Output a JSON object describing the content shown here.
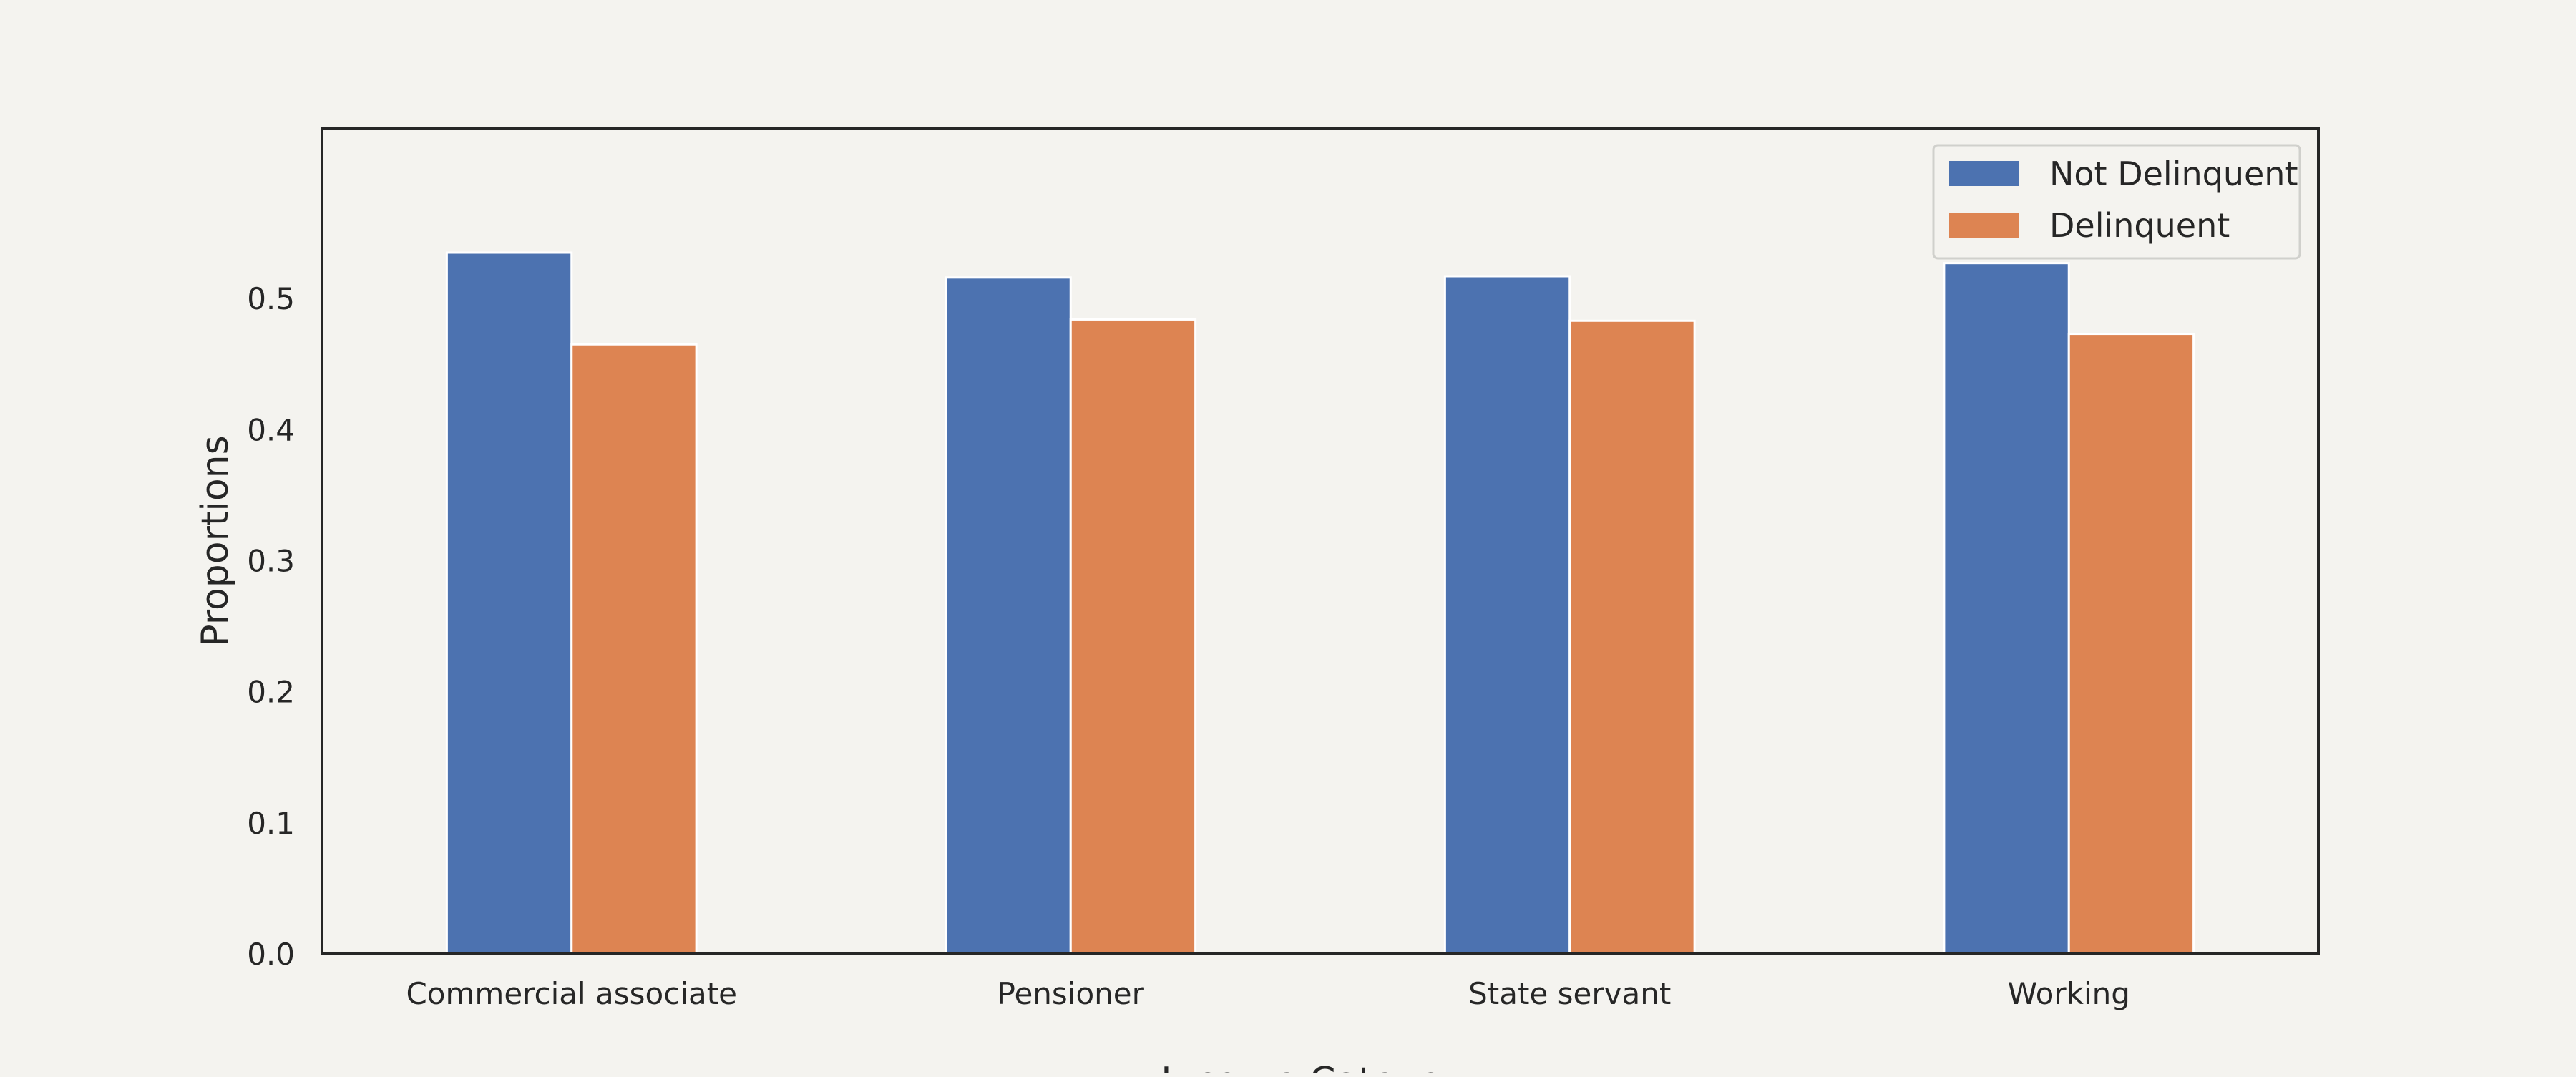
{
  "chart_data": {
    "type": "bar",
    "title": "",
    "xlabel": "Income Category",
    "ylabel": "Proportions",
    "categories": [
      "Commercial associate",
      "Pensioner",
      "State servant",
      "Working"
    ],
    "series": [
      {
        "name": "Not Delinquent",
        "color": "#4c72b0",
        "values": [
          0.535,
          0.516,
          0.517,
          0.527
        ]
      },
      {
        "name": "Delinquent",
        "color": "#dd8452",
        "values": [
          0.465,
          0.484,
          0.483,
          0.473
        ]
      }
    ],
    "ylim": [
      0,
      0.63
    ],
    "yticks": [
      "0.0",
      "0.1",
      "0.2",
      "0.3",
      "0.4",
      "0.5"
    ],
    "grid": false,
    "legend_position": "top-right"
  }
}
